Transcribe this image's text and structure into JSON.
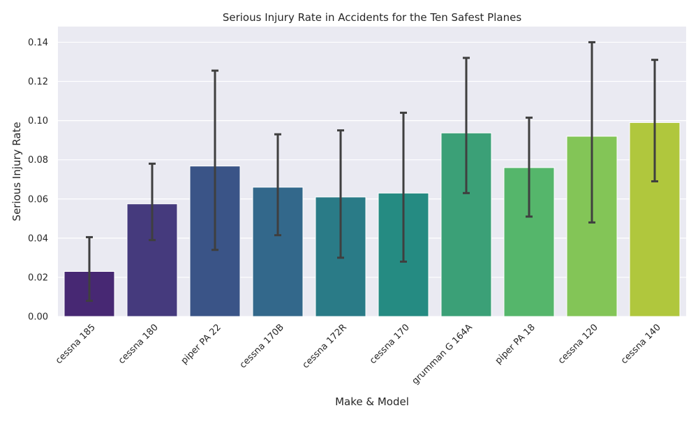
{
  "chart_data": {
    "type": "bar",
    "title": "Serious Injury Rate in Accidents for the Ten Safest Planes",
    "xlabel": "Make & Model",
    "ylabel": "Serious Injury Rate",
    "ylim": [
      0,
      0.148
    ],
    "yticks": [
      "0.00",
      "0.02",
      "0.04",
      "0.06",
      "0.08",
      "0.10",
      "0.12",
      "0.14"
    ],
    "grid": true,
    "categories": [
      "cessna 185",
      "cessna 180",
      "piper PA 22",
      "cessna 170B",
      "cessna 172R",
      "cessna 170",
      "grumman G 164A",
      "piper PA 18",
      "cessna 120",
      "cessna 140"
    ],
    "values": [
      0.023,
      0.0575,
      0.0768,
      0.066,
      0.061,
      0.063,
      0.0937,
      0.076,
      0.092,
      0.099
    ],
    "error_low": [
      0.008,
      0.039,
      0.034,
      0.0415,
      0.03,
      0.028,
      0.063,
      0.051,
      0.048,
      0.069
    ],
    "error_high": [
      0.0405,
      0.078,
      0.1255,
      0.093,
      0.095,
      0.104,
      0.132,
      0.1015,
      0.14,
      0.131
    ],
    "colors": [
      "#472873",
      "#453a7d",
      "#3a5487",
      "#33688b",
      "#2a7b87",
      "#258b82",
      "#3ba077",
      "#55b66b",
      "#83c557",
      "#b0c73d"
    ],
    "background_color": "#eaeaf2",
    "errorbar_color": "#3f3f3f"
  }
}
